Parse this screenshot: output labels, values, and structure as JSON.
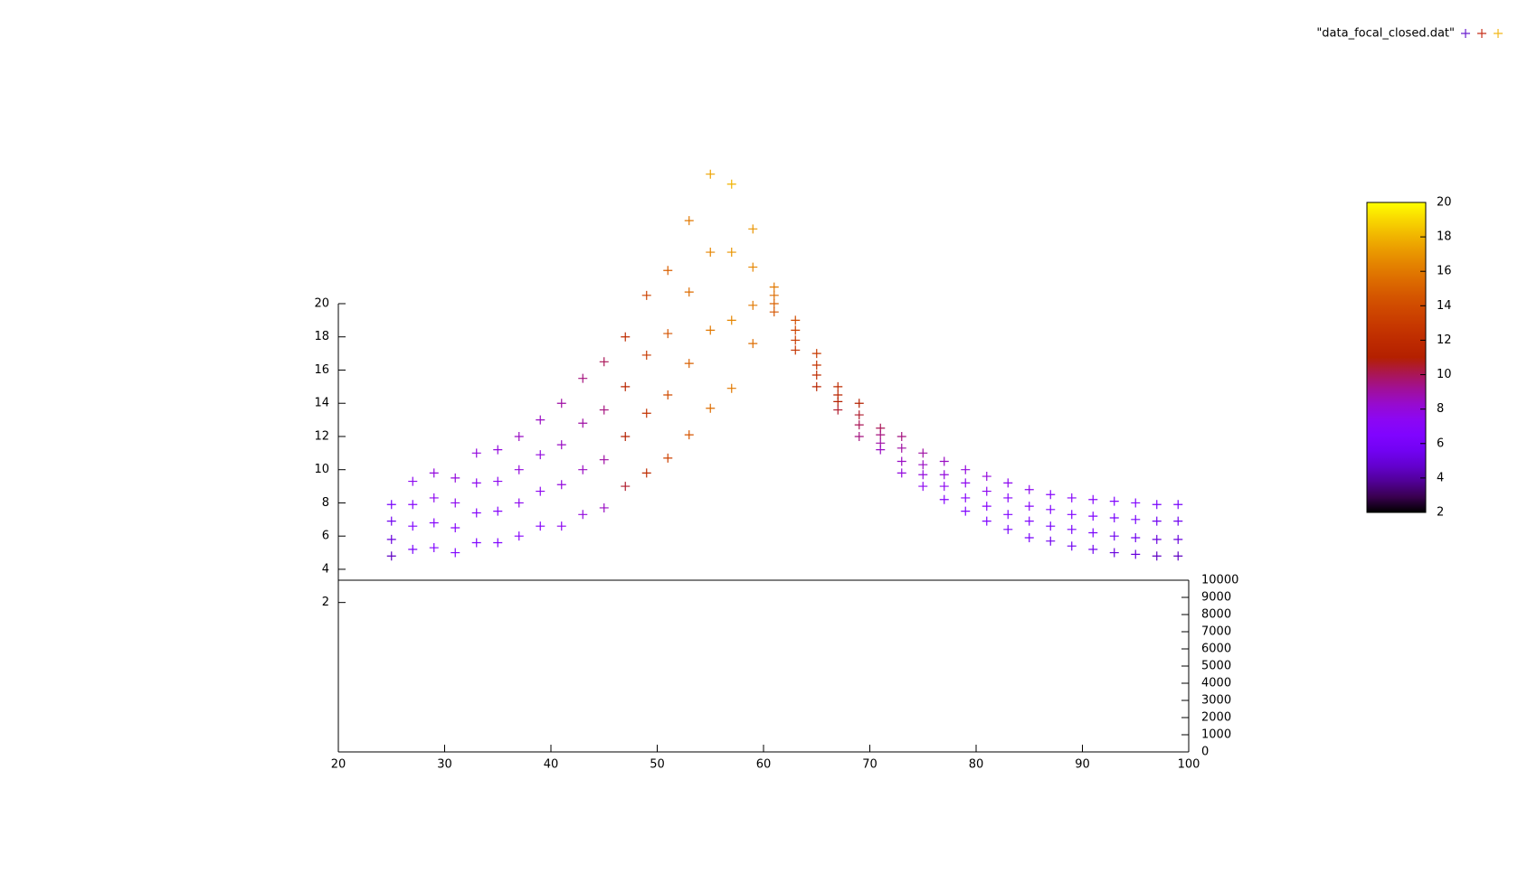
{
  "chart_data": {
    "type": "scatter",
    "legend": {
      "label": "\"data_focal_closed.dat\"",
      "colors": [
        "#6a1fcf",
        "#c8321c",
        "#f2b81a"
      ],
      "position": "top-right"
    },
    "x": [
      25,
      27,
      29,
      31,
      33,
      35,
      37,
      39,
      41,
      43,
      45,
      47,
      49,
      51,
      53,
      55,
      57,
      59,
      61,
      63,
      65,
      67,
      69,
      71,
      73,
      75,
      77,
      79,
      81,
      83,
      85,
      87,
      89,
      91,
      93,
      95,
      97,
      99
    ],
    "series": [
      {
        "values": [
          7.9,
          9.3,
          9.8,
          9.5,
          11,
          11.2,
          12,
          13,
          14,
          15.5,
          16.5,
          18,
          20.5,
          22,
          25,
          27.8,
          27.2,
          24.5,
          21,
          19,
          17,
          15,
          14,
          12.5,
          12,
          11,
          10.5,
          10,
          9.6,
          9.2,
          8.8,
          8.5,
          8.3,
          8.2,
          8.1,
          8,
          7.9,
          7.9
        ],
        "z": [
          6,
          7.5,
          8,
          8,
          8,
          8,
          8.5,
          8.5,
          9,
          9.5,
          10,
          12,
          13.5,
          15,
          16,
          17.5,
          18,
          17,
          16,
          14,
          13,
          12,
          11,
          10,
          9.5,
          9,
          8.5,
          8,
          8,
          7.5,
          7.5,
          7,
          7,
          7,
          6.5,
          6.5,
          6,
          6
        ]
      },
      {
        "values": [
          6.9,
          7.9,
          8.3,
          8,
          9.2,
          9.3,
          10,
          10.9,
          11.5,
          12.8,
          13.6,
          15,
          16.9,
          18.2,
          20.7,
          23.1,
          23.1,
          22.2,
          20.5,
          18.4,
          16.3,
          14.5,
          13.3,
          12.1,
          11.3,
          10.3,
          9.7,
          9.2,
          8.7,
          8.3,
          7.8,
          7.6,
          7.3,
          7.2,
          7.1,
          7,
          6.9,
          6.9
        ],
        "z": [
          5.5,
          7,
          7.5,
          7.5,
          7.5,
          7.5,
          8,
          8,
          8.5,
          9,
          9.5,
          11.5,
          13,
          14.5,
          15.5,
          16.5,
          17,
          16.5,
          15.5,
          13.5,
          12.5,
          11.5,
          10.5,
          9.5,
          9,
          8.5,
          8,
          7.5,
          7.5,
          7,
          7,
          6.5,
          6.5,
          6.5,
          6,
          6,
          5.5,
          5.5
        ]
      },
      {
        "values": [
          5.8,
          6.6,
          6.8,
          6.5,
          7.4,
          7.5,
          8,
          8.7,
          9.1,
          10,
          10.6,
          12,
          13.4,
          14.5,
          16.4,
          18.4,
          19,
          19.9,
          20,
          17.8,
          15.7,
          14.1,
          12.7,
          11.6,
          10.5,
          9.7,
          9,
          8.3,
          7.8,
          7.3,
          6.9,
          6.6,
          6.4,
          6.2,
          6,
          5.9,
          5.8,
          5.8
        ],
        "z": [
          5,
          6.5,
          7,
          7,
          7,
          7,
          7.5,
          7.5,
          8,
          8.5,
          9,
          11,
          12.5,
          14,
          15,
          16,
          16.5,
          16,
          15,
          13,
          12,
          11,
          10,
          9,
          8.5,
          8,
          7.5,
          7,
          7,
          6.5,
          6.5,
          6,
          6,
          6,
          5.5,
          5.5,
          5,
          5
        ]
      },
      {
        "values": [
          4.8,
          5.2,
          5.3,
          5,
          5.6,
          5.6,
          6,
          6.6,
          6.6,
          7.3,
          7.7,
          9,
          9.8,
          10.7,
          12.1,
          13.7,
          14.9,
          17.6,
          19.5,
          17.2,
          15,
          13.6,
          12,
          11.2,
          9.8,
          9,
          8.2,
          7.5,
          6.9,
          6.4,
          5.9,
          5.7,
          5.4,
          5.2,
          5,
          4.9,
          4.8,
          4.8
        ],
        "z": [
          4.5,
          6,
          6.5,
          6.5,
          6.5,
          6.5,
          7,
          7,
          7.5,
          8,
          8.5,
          10.5,
          12,
          13.5,
          14.5,
          15.5,
          16,
          15.5,
          14.5,
          12.5,
          11.5,
          10.5,
          9.5,
          8.5,
          8,
          7.5,
          7,
          6.5,
          6.5,
          6,
          6,
          5.5,
          5.5,
          5.5,
          5,
          5,
          4.5,
          4.5
        ]
      }
    ],
    "xlim": [
      20,
      100
    ],
    "xticks": [
      20,
      30,
      40,
      50,
      60,
      70,
      80,
      90,
      100
    ],
    "ylim": [
      -7,
      20
    ],
    "yticks": [
      2,
      4,
      6,
      8,
      10,
      12,
      14,
      16,
      18,
      20
    ],
    "y2lim": [
      0,
      10000
    ],
    "y2ticks": [
      0,
      1000,
      2000,
      3000,
      4000,
      5000,
      6000,
      7000,
      8000,
      9000,
      10000
    ],
    "cblim": [
      2,
      20
    ],
    "cbticks": [
      2,
      4,
      6,
      8,
      10,
      12,
      14,
      16,
      18,
      20
    ],
    "palette": "rgbformulae-7-5-15"
  }
}
